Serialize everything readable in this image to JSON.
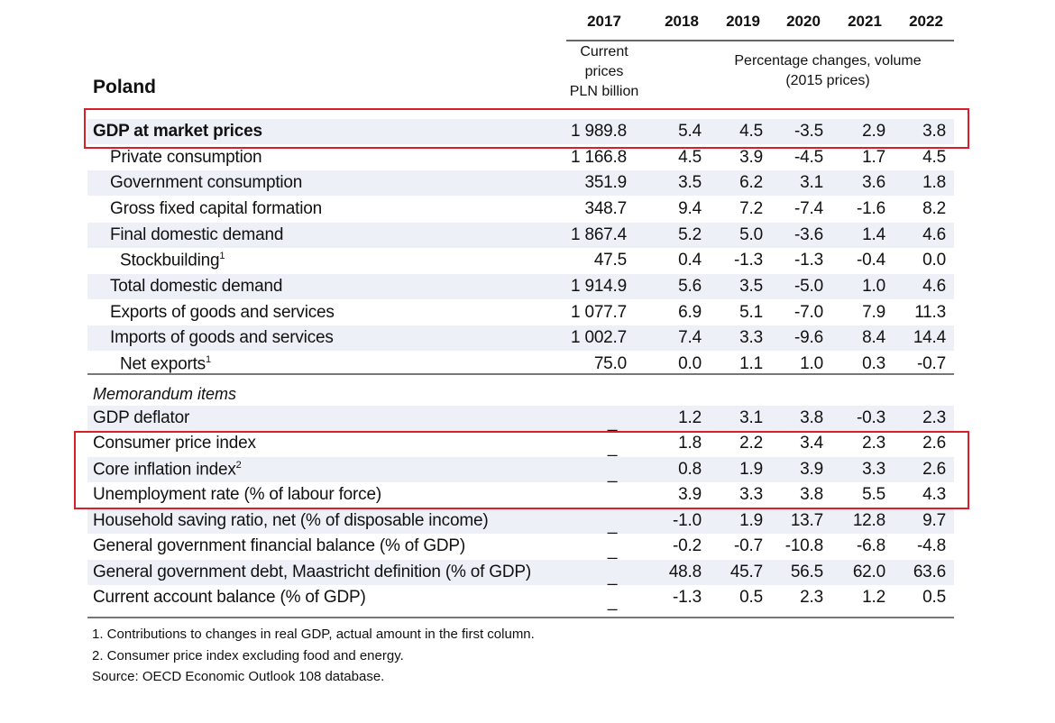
{
  "country": "Poland",
  "years": [
    "2017",
    "2018",
    "2019",
    "2020",
    "2021",
    "2022"
  ],
  "subheader": {
    "current": [
      "Current",
      "prices",
      "PLN billion"
    ],
    "pct": [
      "Percentage changes, volume",
      "(2015 prices)"
    ]
  },
  "memo_title": "Memorandum items",
  "rows": [
    {
      "label": "GDP at market prices",
      "bold": true,
      "indent": 0,
      "values": [
        "1 989.8",
        "5.4",
        "4.5",
        "-3.5",
        "2.9",
        "3.8"
      ],
      "highlighted": true
    },
    {
      "label": "Private consumption",
      "indent": 1,
      "values": [
        "1 166.8",
        "4.5",
        "3.9",
        "-4.5",
        "1.7",
        "4.5"
      ]
    },
    {
      "label": "Government consumption",
      "indent": 1,
      "values": [
        "351.9",
        "3.5",
        "6.2",
        "3.1",
        "3.6",
        "1.8"
      ]
    },
    {
      "label": "Gross fixed capital formation",
      "indent": 1,
      "values": [
        "348.7",
        "9.4",
        "7.2",
        "-7.4",
        "-1.6",
        "8.2"
      ]
    },
    {
      "label": "Final domestic demand",
      "indent": 1,
      "values": [
        "1 867.4",
        "5.2",
        "5.0",
        "-3.6",
        "1.4",
        "4.6"
      ]
    },
    {
      "label": "Stockbuilding",
      "sup": "1",
      "indent": 2,
      "values": [
        "47.5",
        "0.4",
        "-1.3",
        "-1.3",
        "-0.4",
        "0.0"
      ]
    },
    {
      "label": "Total domestic demand",
      "indent": 1,
      "values": [
        "1 914.9",
        "5.6",
        "3.5",
        "-5.0",
        "1.0",
        "4.6"
      ]
    },
    {
      "label": "Exports of goods and services",
      "indent": 1,
      "values": [
        "1 077.7",
        "6.9",
        "5.1",
        "-7.0",
        "7.9",
        "11.3"
      ]
    },
    {
      "label": "Imports of goods and services",
      "indent": 1,
      "values": [
        "1 002.7",
        "7.4",
        "3.3",
        "-9.6",
        "8.4",
        "14.4"
      ]
    },
    {
      "label": "Net exports",
      "sup": "1",
      "indent": 2,
      "values": [
        "75.0",
        "0.0",
        "1.1",
        "1.0",
        "0.3",
        "-0.7"
      ]
    }
  ],
  "memo_rows": [
    {
      "label": "GDP deflator",
      "values": [
        "_",
        "1.2",
        "3.1",
        "3.8",
        "-0.3",
        "2.3"
      ]
    },
    {
      "label": "Consumer price index",
      "values": [
        "_",
        "1.8",
        "2.2",
        "3.4",
        "2.3",
        "2.6"
      ],
      "highlighted": true
    },
    {
      "label": "Core inflation index",
      "sup": "2",
      "values": [
        "_",
        "0.8",
        "1.9",
        "3.9",
        "3.3",
        "2.6"
      ],
      "highlighted": true
    },
    {
      "label": "Unemployment rate (% of labour force)",
      "values": [
        "",
        "3.9",
        "3.3",
        "3.8",
        "5.5",
        "4.3"
      ],
      "highlighted": true
    },
    {
      "label": "Household saving ratio, net (% of disposable income)",
      "values": [
        "_",
        "-1.0",
        "1.9",
        "13.7",
        "12.8",
        "9.7"
      ]
    },
    {
      "label": "General government financial balance (% of GDP)",
      "values": [
        "_",
        "-0.2",
        "-0.7",
        "-10.8",
        "-6.8",
        "-4.8"
      ]
    },
    {
      "label": "General government debt, Maastricht definition (% of GDP)",
      "values": [
        "_",
        "48.8",
        "45.7",
        "56.5",
        "62.0",
        "63.6"
      ]
    },
    {
      "label": "Current account balance (% of GDP)",
      "values": [
        "_",
        "-1.3",
        "0.5",
        "2.3",
        "1.2",
        "0.5"
      ]
    }
  ],
  "notes": [
    "1.  Contributions to changes in real GDP, actual amount in the first column.",
    "2.  Consumer price index excluding food and energy.",
    "Source:   OECD Economic Outlook 108 database."
  ],
  "highlight_color": "#d9202a",
  "shade_color": "#eef0f7"
}
